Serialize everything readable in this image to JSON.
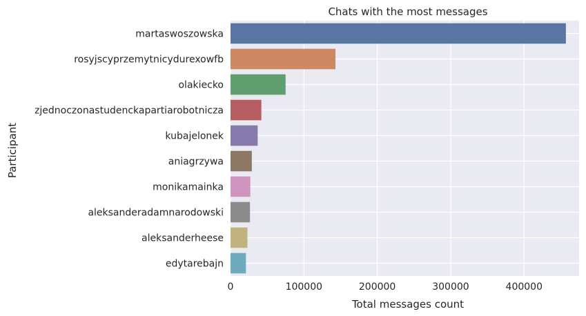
{
  "chart_data": {
    "type": "bar",
    "orientation": "horizontal",
    "title": "Chats with the most messages",
    "xlabel": "Total messages count",
    "ylabel": "Participant",
    "xlim": [
      0,
      475000
    ],
    "xticks": [
      0,
      100000,
      200000,
      300000,
      400000
    ],
    "grid": true,
    "categories": [
      "martaswoszowska",
      "rosyjscyprzemytnicydurexowfb",
      "olakiecko",
      "zjednoczonastudenckapartiarobotnicza",
      "kubajelonek",
      "aniagrzywa",
      "monikamainka",
      "aleksanderadamnarodowski",
      "aleksanderheese",
      "edytarebajn"
    ],
    "values": [
      457000,
      143000,
      75000,
      42000,
      37000,
      29000,
      27000,
      26500,
      23000,
      21000
    ],
    "colors": [
      "#5875a4",
      "#cc8963",
      "#5f9e6e",
      "#b55d60",
      "#857aab",
      "#8d7866",
      "#d095bf",
      "#8c8c8c",
      "#c1b37f",
      "#6eabbd"
    ],
    "background": "#eaeaf2",
    "gridColor": "#ffffff"
  }
}
